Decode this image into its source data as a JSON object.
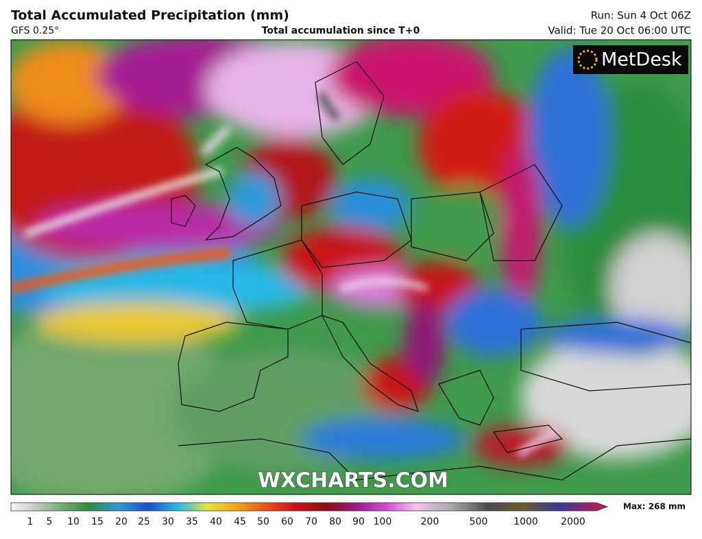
{
  "header": {
    "title": "Total Accumulated Precipitation (mm)",
    "model": "GFS 0.25°",
    "subtitle": "Total accumulation since T+0",
    "run": "Run: Sun 4 Oct 06Z",
    "valid": "Valid: Tue 20 Oct 06:00 UTC"
  },
  "map": {
    "logo": "MetDesk",
    "watermark": "WXCHARTS.COM"
  },
  "legend": {
    "labels": [
      1,
      5,
      10,
      15,
      20,
      25,
      30,
      35,
      40,
      45,
      50,
      60,
      70,
      80,
      90,
      100,
      200,
      500,
      1000,
      2000
    ],
    "max": "Max: 268 mm"
  }
}
